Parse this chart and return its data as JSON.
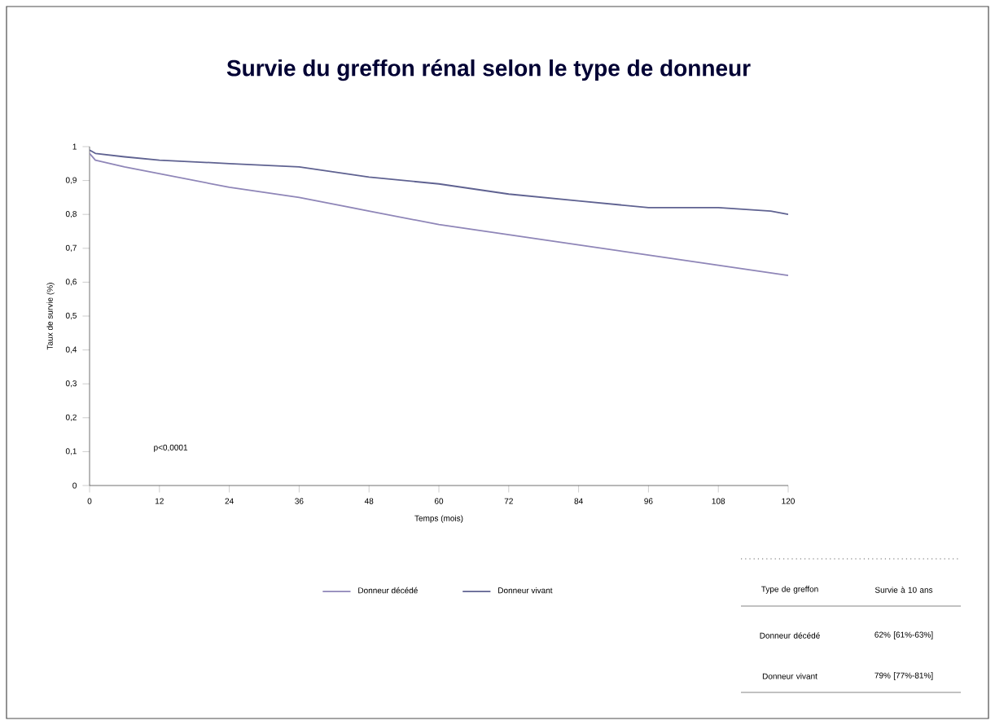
{
  "chart_data": {
    "type": "line",
    "title": "Survie du greffon rénal selon le type de donneur",
    "xlabel": "Temps (mois)",
    "ylabel": "Taux de survie (%)",
    "xlim": [
      0,
      120
    ],
    "xticks": [
      0,
      12,
      24,
      36,
      48,
      60,
      72,
      84,
      96,
      108,
      120
    ],
    "ylim": [
      0,
      1
    ],
    "yticks": [
      0,
      {
        "value": 0.1,
        "label": "0,1"
      },
      {
        "value": 0.2,
        "label": "0,2"
      },
      {
        "value": 0.3,
        "label": "0,3"
      },
      {
        "value": 0.4,
        "label": "0,4"
      },
      {
        "value": 0.5,
        "label": "0,5"
      },
      {
        "value": 0.6,
        "label": "0,6"
      },
      {
        "value": 0.7,
        "label": "0,7"
      },
      {
        "value": 0.8,
        "label": "0,8"
      },
      {
        "value": 0.9,
        "label": "0,9"
      },
      1
    ],
    "series": [
      {
        "name": "Donneur décédé",
        "color": "#8f86b8",
        "x": [
          0,
          1,
          6,
          12,
          24,
          36,
          48,
          60,
          72,
          84,
          96,
          108,
          120
        ],
        "values": [
          0.98,
          0.96,
          0.94,
          0.92,
          0.88,
          0.85,
          0.81,
          0.77,
          0.74,
          0.71,
          0.68,
          0.65,
          0.62
        ]
      },
      {
        "name": "Donneur vivant",
        "color": "#5f6291",
        "x": [
          0,
          1,
          6,
          12,
          24,
          36,
          48,
          60,
          72,
          84,
          96,
          108,
          117,
          120
        ],
        "values": [
          0.99,
          0.98,
          0.97,
          0.96,
          0.95,
          0.94,
          0.91,
          0.89,
          0.86,
          0.84,
          0.82,
          0.82,
          0.81,
          0.8
        ]
      }
    ],
    "annotations": [
      "p<0,0001",
      "Type de greffon",
      "Survie à 10 ans",
      "Donneur décédé",
      "62% [61%-63%]",
      "Donneur vivant",
      "79% [77%-81%]"
    ],
    "legend": "bottom",
    "marker": "none",
    "line_style": "solid",
    "grid": false
  }
}
